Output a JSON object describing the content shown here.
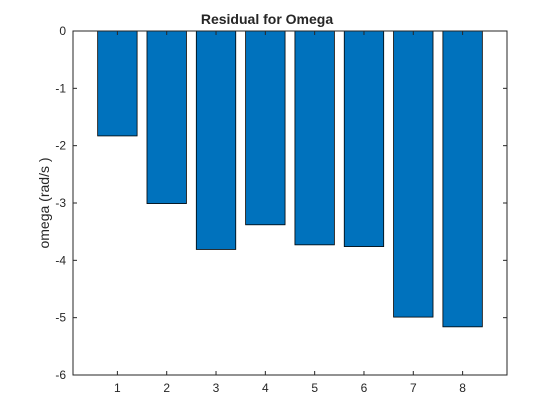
{
  "chart_data": {
    "type": "bar",
    "title": "Residual for Omega",
    "xlabel": "",
    "ylabel": "omega (rad/s   )",
    "categories": [
      "1",
      "2",
      "3",
      "4",
      "5",
      "6",
      "7",
      "8"
    ],
    "values": [
      -1.83,
      -3.01,
      -3.81,
      -3.38,
      -3.73,
      -3.76,
      -4.99,
      -5.16
    ],
    "ylim": [
      -6,
      0
    ],
    "yticks": [
      0,
      -1,
      -2,
      -3,
      -4,
      -5,
      -6
    ],
    "xlim": [
      0.1,
      8.9
    ],
    "grid": false,
    "legend": "none",
    "colors": {
      "bar_fill": "#0072BD",
      "bar_edge": "#000000",
      "axes": "#262626",
      "background": "#ffffff"
    }
  }
}
